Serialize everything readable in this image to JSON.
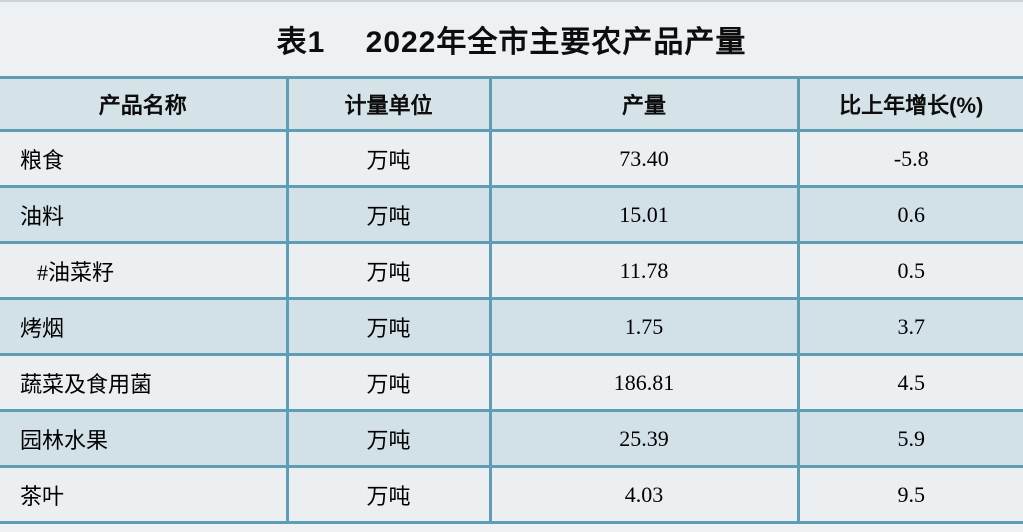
{
  "title": "表1　 2022年全市主要农产品产量",
  "table": {
    "headers": [
      "产品名称",
      "计量单位",
      "产量",
      "比上年增长(%)"
    ],
    "rows": [
      {
        "name": "粮食",
        "unit": "万吨",
        "output": "73.40",
        "growth": "-5.8",
        "indent": false
      },
      {
        "name": "油料",
        "unit": "万吨",
        "output": "15.01",
        "growth": "0.6",
        "indent": false
      },
      {
        "name": "#油菜籽",
        "unit": "万吨",
        "output": "11.78",
        "growth": "0.5",
        "indent": true
      },
      {
        "name": "烤烟",
        "unit": "万吨",
        "output": "1.75",
        "growth": "3.7",
        "indent": false
      },
      {
        "name": "蔬菜及食用菌",
        "unit": "万吨",
        "output": "186.81",
        "growth": "4.5",
        "indent": false
      },
      {
        "name": "园林水果",
        "unit": "万吨",
        "output": "25.39",
        "growth": "5.9",
        "indent": false
      },
      {
        "name": "茶叶",
        "unit": "万吨",
        "output": "4.03",
        "growth": "9.5",
        "indent": false
      }
    ]
  },
  "colors": {
    "page_bg": "#eef1f3",
    "hairline": "#ccd3d7",
    "header_bg": "#d5e3e9",
    "row_light": "#ebeff1",
    "row_dark": "#d2e1e7",
    "border": "#5e9db4",
    "text": "#000000"
  },
  "chart_data": {
    "type": "table",
    "title": "表1　2022年全市主要农产品产量",
    "columns": [
      "产品名称",
      "计量单位",
      "产量",
      "比上年增长(%)"
    ],
    "rows": [
      [
        "粮食",
        "万吨",
        73.4,
        -5.8
      ],
      [
        "油料",
        "万吨",
        15.01,
        0.6
      ],
      [
        "#油菜籽",
        "万吨",
        11.78,
        0.5
      ],
      [
        "烤烟",
        "万吨",
        1.75,
        3.7
      ],
      [
        "蔬菜及食用菌",
        "万吨",
        186.81,
        4.5
      ],
      [
        "园林水果",
        "万吨",
        25.39,
        5.9
      ],
      [
        "茶叶",
        "万吨",
        4.03,
        9.5
      ]
    ]
  }
}
